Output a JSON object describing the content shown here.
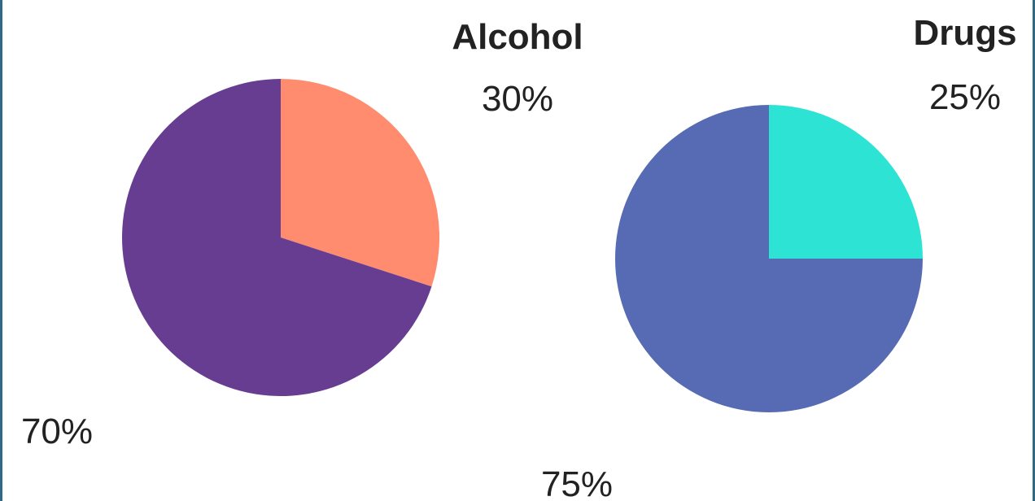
{
  "chart_data": [
    {
      "type": "pie",
      "title": "Alcohol",
      "slices": [
        {
          "label": "30%",
          "value": 30,
          "color": "#ff8c6e"
        },
        {
          "label": "70%",
          "value": 70,
          "color": "#673d91"
        }
      ]
    },
    {
      "type": "pie",
      "title": "Drugs",
      "slices": [
        {
          "label": "25%",
          "value": 25,
          "color": "#2ce3d4"
        },
        {
          "label": "75%",
          "value": 75,
          "color": "#566bb3"
        }
      ]
    }
  ]
}
